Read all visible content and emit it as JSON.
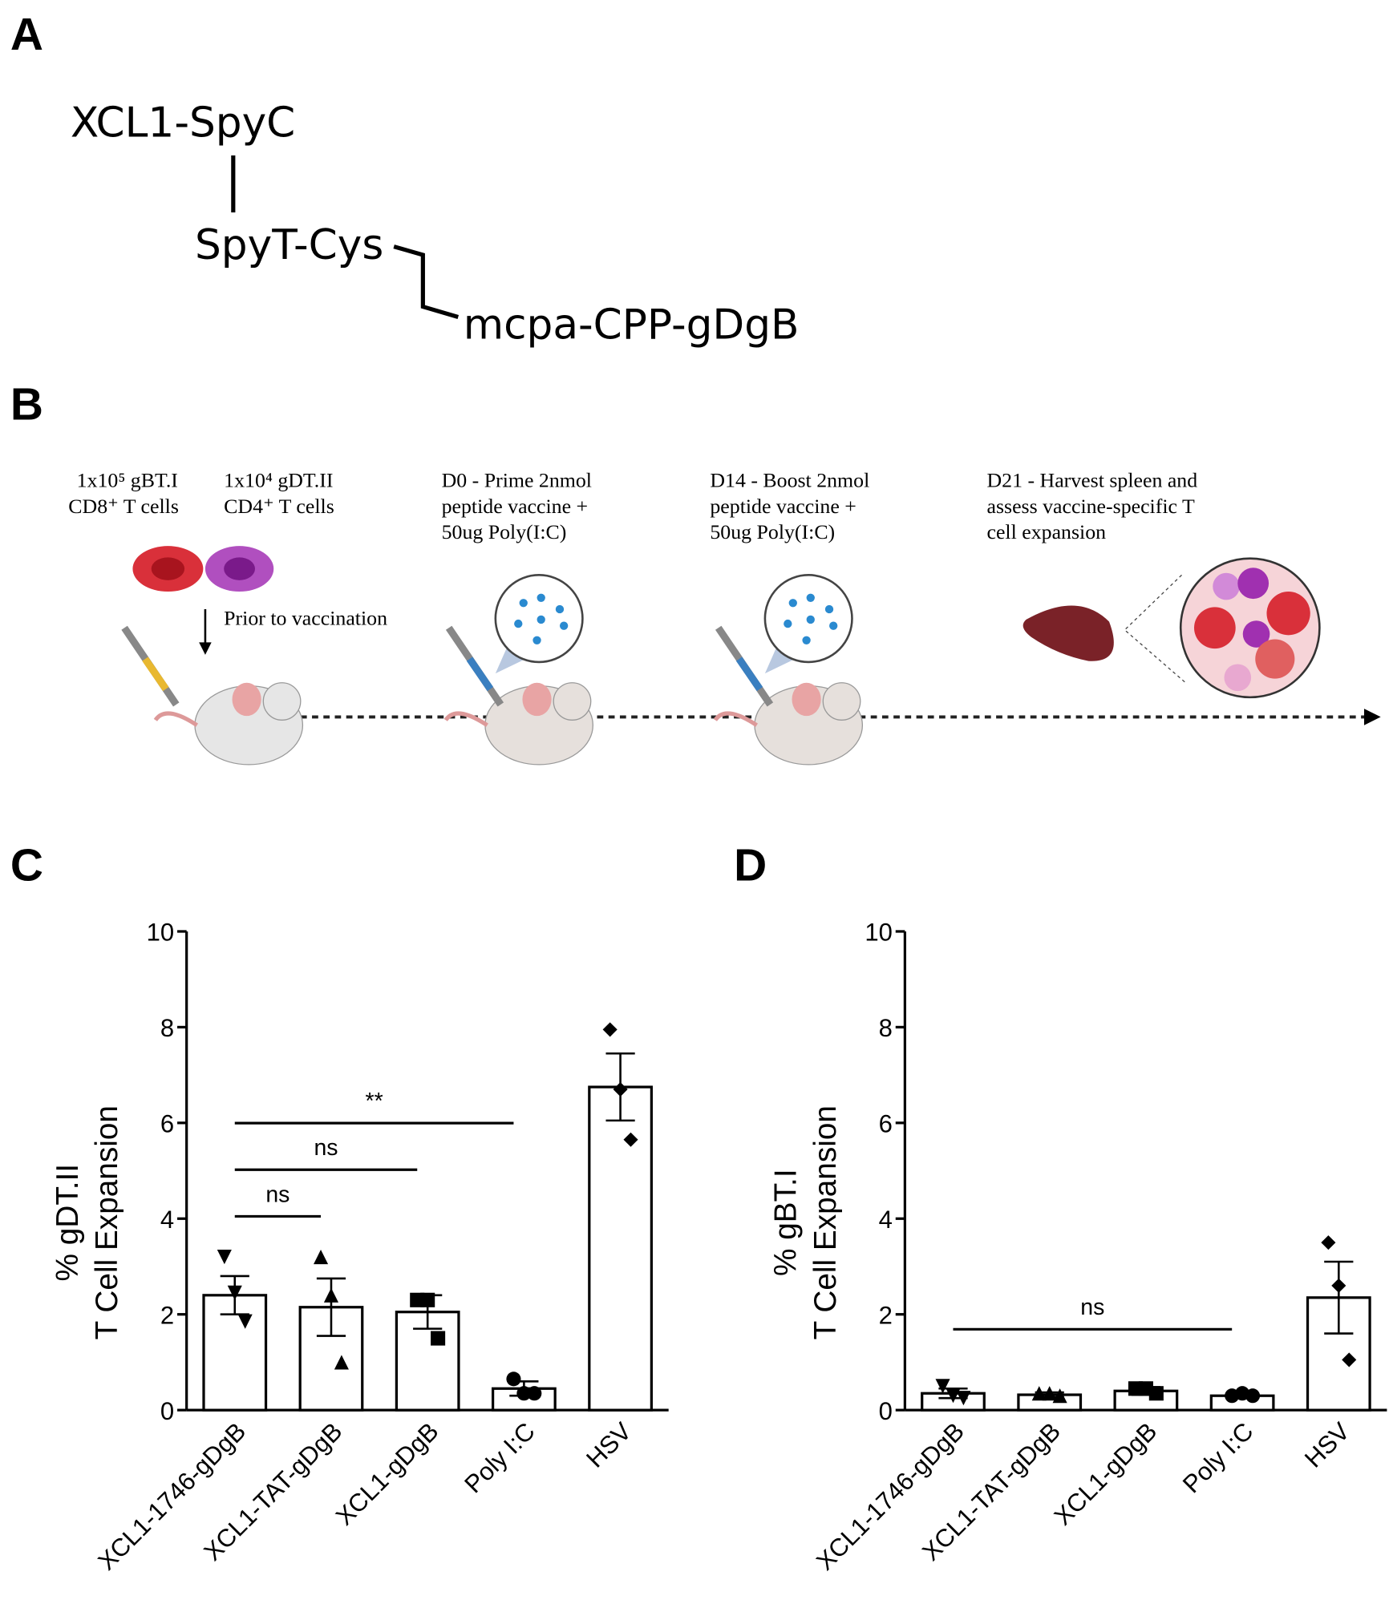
{
  "panels": {
    "a": {
      "letter": "A",
      "labels": [
        "XCL1-SpyC",
        "SpyT-Cys",
        "mcpa-CPP-gDgB"
      ]
    },
    "b": {
      "letter": "B",
      "steps": [
        [
          "1x10⁵ gBT.I",
          "CD8⁺ T cells"
        ],
        [
          "1x10⁴ gDT.II",
          "CD4⁺ T cells"
        ],
        [
          "D0 - Prime 2nmol",
          "peptide vaccine +",
          "50ug Poly(I:C)"
        ],
        [
          "D14 - Boost 2nmol",
          "peptide vaccine +",
          "50ug Poly(I:C)"
        ],
        [
          "D21 - Harvest spleen and",
          "assess vaccine-specific  T",
          "cell expansion"
        ]
      ],
      "arrow_label": "Prior to vaccination"
    },
    "c": {
      "letter": "C"
    },
    "d": {
      "letter": "D"
    }
  },
  "chart_data": [
    {
      "type": "bar",
      "ylabel": [
        "% gDT.II",
        "T Cell Expansion"
      ],
      "categories": [
        "XCL1-1746-gDgB",
        "XCL1-TAT-gDgB",
        "XCL1-gDgB",
        "Poly I:C",
        "HSV"
      ],
      "values": [
        2.4,
        2.15,
        2.05,
        0.45,
        6.75
      ],
      "errors": [
        0.4,
        0.6,
        0.35,
        0.15,
        0.7
      ],
      "points": [
        [
          3.2,
          2.45,
          1.85
        ],
        [
          3.2,
          2.4,
          1.0
        ],
        [
          2.3,
          2.3,
          1.5
        ],
        [
          0.65,
          0.35,
          0.35
        ],
        [
          7.95,
          6.7,
          5.65
        ]
      ],
      "color": "#ffffff",
      "annotations": [
        "ns",
        "ns",
        "**"
      ],
      "ylim": [
        0,
        10
      ],
      "yticks": [
        0,
        2,
        4,
        6,
        8,
        10
      ]
    },
    {
      "type": "bar",
      "ylabel": [
        "% gBT.I",
        "T Cell Expansion"
      ],
      "categories": [
        "XCL1-1746-gDgB",
        "XCL1-TAT-gDgB",
        "XCL1-gDgB",
        "Poly I:C",
        "HSV"
      ],
      "values": [
        0.35,
        0.32,
        0.4,
        0.3,
        2.35
      ],
      "errors": [
        0.1,
        0.05,
        0.08,
        0.05,
        0.75
      ],
      "points": [
        [
          0.5,
          0.3,
          0.25
        ],
        [
          0.35,
          0.35,
          0.3
        ],
        [
          0.45,
          0.45,
          0.35
        ],
        [
          0.3,
          0.35,
          0.3
        ],
        [
          3.5,
          2.6,
          1.05
        ]
      ],
      "color": "#ffffff",
      "annotations": [
        "ns"
      ],
      "ylim": [
        0,
        10
      ],
      "yticks": [
        0,
        2,
        4,
        6,
        8,
        10
      ]
    }
  ]
}
